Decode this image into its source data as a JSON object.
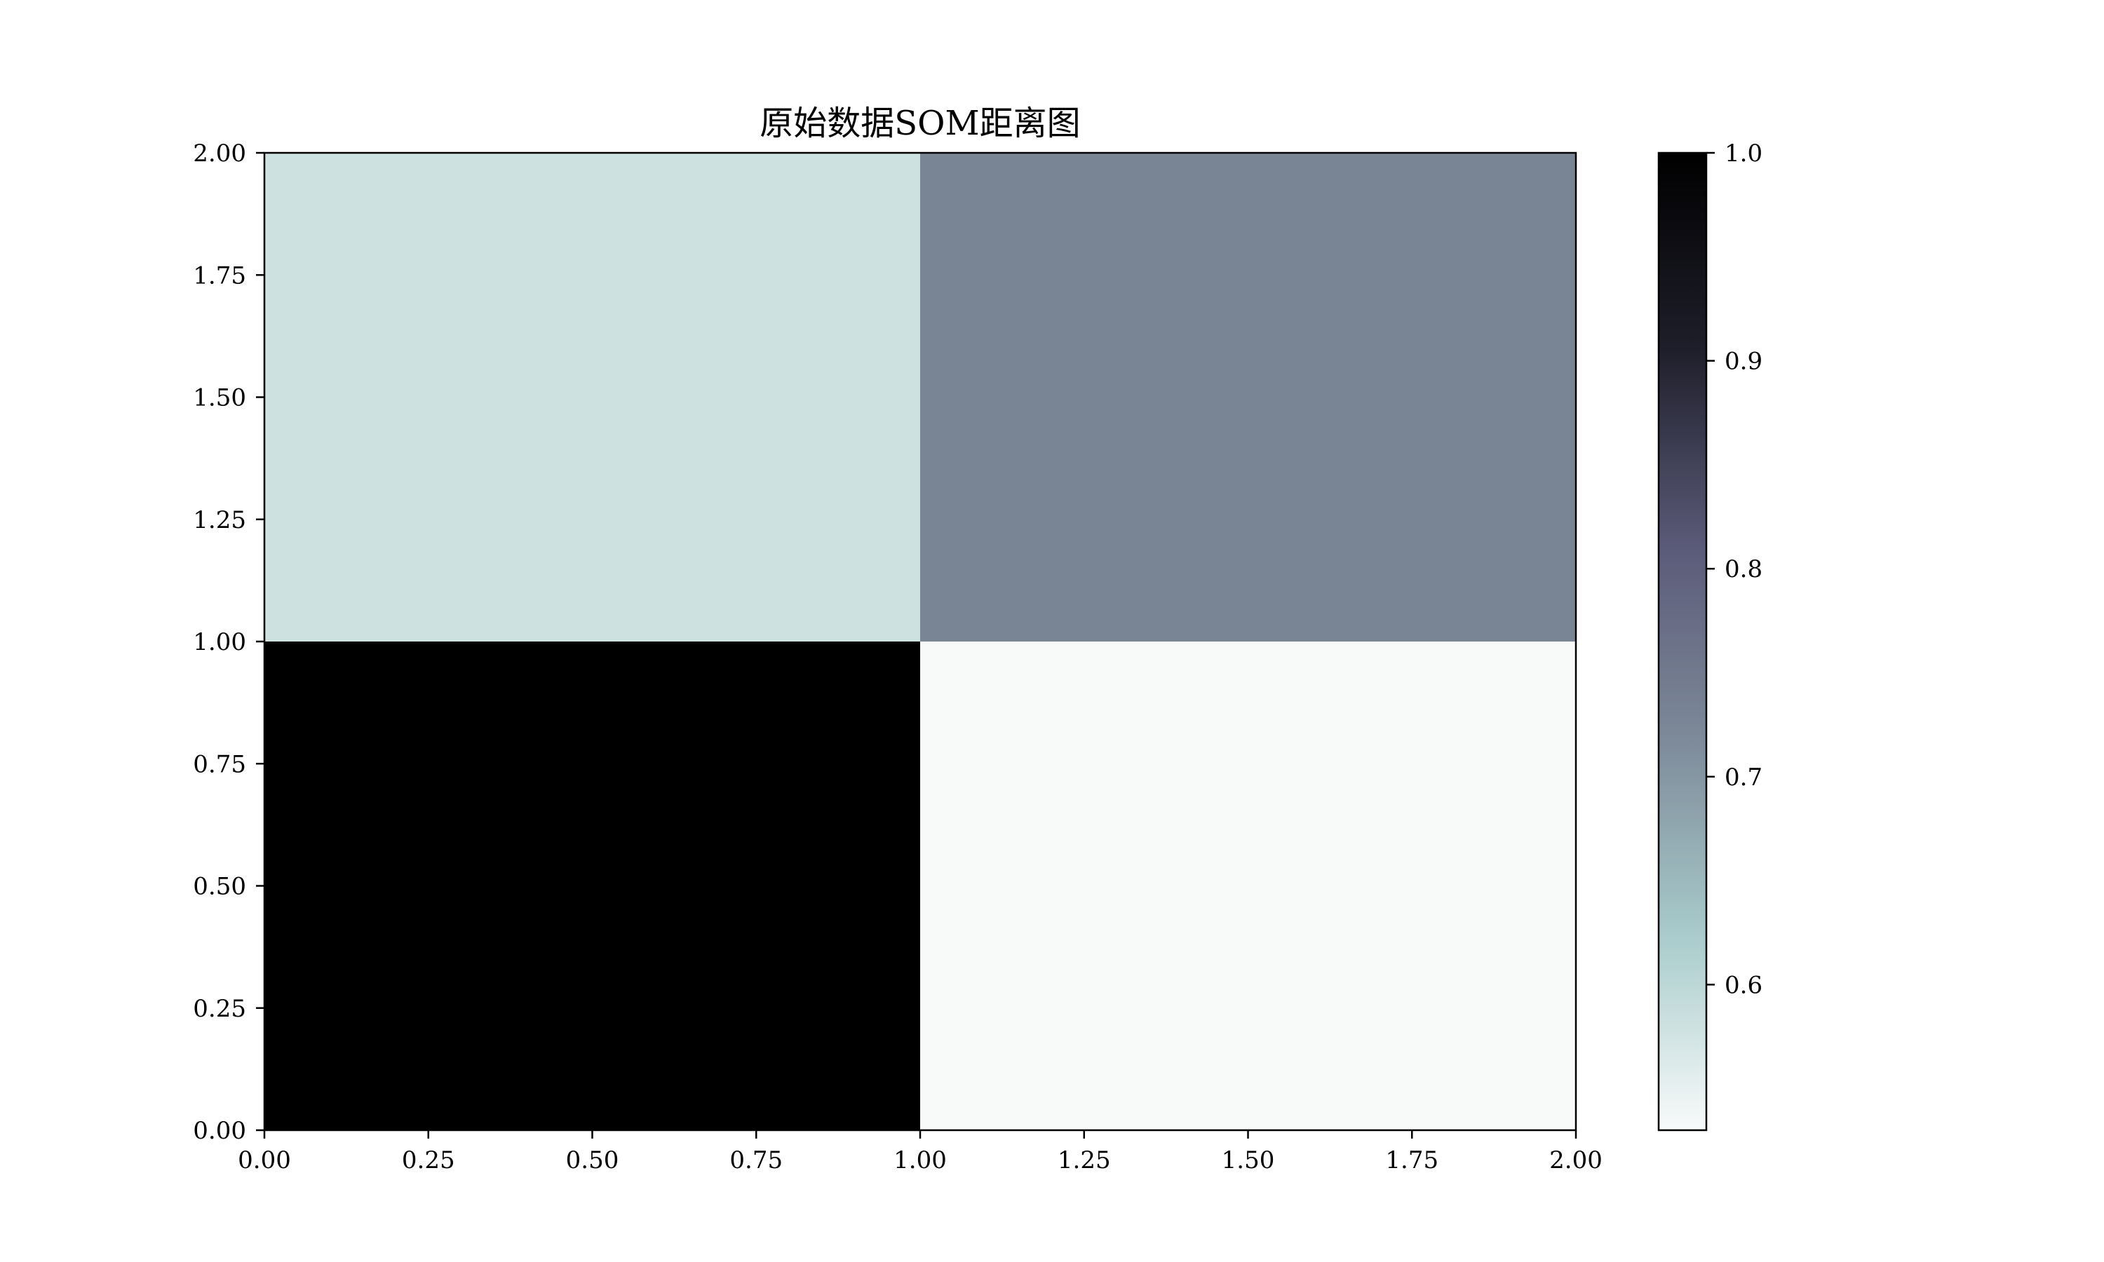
{
  "chart_data": {
    "type": "heatmap",
    "title": "原始数据SOM距离图",
    "xlabel": "",
    "ylabel": "",
    "xlim": [
      0,
      2
    ],
    "ylim": [
      0,
      2
    ],
    "x_ticks": [
      "0.00",
      "0.25",
      "0.50",
      "0.75",
      "1.00",
      "1.25",
      "1.50",
      "1.75",
      "2.00"
    ],
    "y_ticks": [
      "0.00",
      "0.25",
      "0.50",
      "0.75",
      "1.00",
      "1.25",
      "1.50",
      "1.75",
      "2.00"
    ],
    "cells": [
      {
        "x": [
          0,
          1
        ],
        "y": [
          0,
          1
        ],
        "value": 1.0
      },
      {
        "x": [
          1,
          2
        ],
        "y": [
          0,
          1
        ],
        "value": 0.53
      },
      {
        "x": [
          0,
          1
        ],
        "y": [
          1,
          2
        ],
        "value": 0.58
      },
      {
        "x": [
          1,
          2
        ],
        "y": [
          1,
          2
        ],
        "value": 0.73
      }
    ],
    "colorbar": {
      "vmin": 0.53,
      "vmax": 1.0,
      "ticks": [
        0.6,
        0.7,
        0.8,
        0.9,
        1.0
      ],
      "tick_labels": [
        "0.6",
        "0.7",
        "0.8",
        "0.9",
        "1.0"
      ],
      "colormap": "bone_r",
      "colormap_stops": [
        "#f8fafa",
        "#a8cbcb",
        "#7d8a99",
        "#5a5a78",
        "#1e1e2a",
        "#000000"
      ]
    },
    "grid": false,
    "legend": "none"
  }
}
